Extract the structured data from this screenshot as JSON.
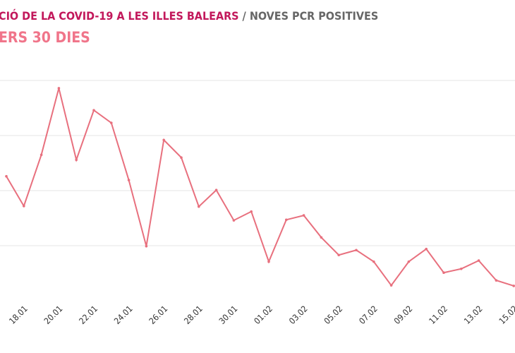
{
  "chart_data": {
    "type": "line",
    "title": "CIÓ DE LA COVID-19 A LES ILLES BALEARS",
    "title_suffix": "/ NOVES PCR POSITIVES",
    "subtitle": "ERS 30 DIES",
    "categories": [
      null,
      "18.01",
      null,
      "20.01",
      null,
      "22.01",
      null,
      "24.01",
      null,
      "26.01",
      null,
      "28.01",
      null,
      "30.01",
      null,
      "01.02",
      null,
      "03.02",
      null,
      "05.02",
      null,
      "07.02",
      null,
      "09.02",
      null,
      "11.02",
      null,
      "13.02",
      null,
      "15.02"
    ],
    "series": [
      {
        "color": "#e8707e",
        "values": [
          2.26,
          1.72,
          2.65,
          3.86,
          2.56,
          3.46,
          3.23,
          2.19,
          0.99,
          2.92,
          2.6,
          1.71,
          2.01,
          1.46,
          1.62,
          0.71,
          1.47,
          1.55,
          1.15,
          0.83,
          0.92,
          0.71,
          0.28,
          0.71,
          0.94,
          0.51,
          0.58,
          0.73,
          0.37,
          0.27
        ]
      }
    ],
    "ylim": [
      0,
      4
    ],
    "grid": true
  }
}
